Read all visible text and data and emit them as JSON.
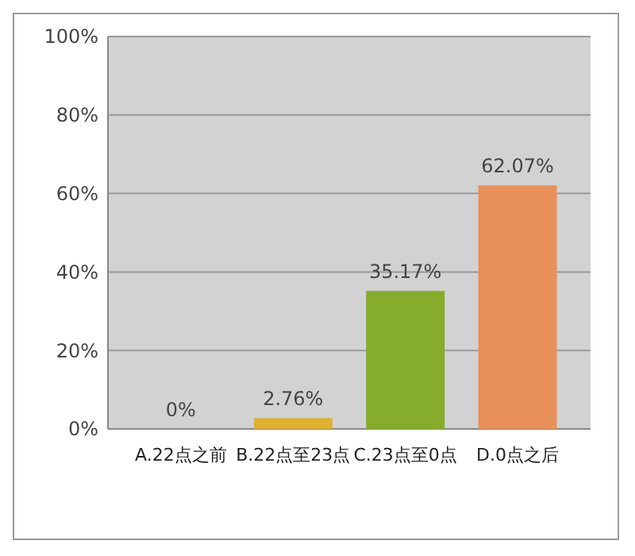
{
  "chart_data": {
    "type": "bar",
    "categories": [
      "A.22点之前",
      "B.22点至23点",
      "C.23点至0点",
      "D.0点之后"
    ],
    "values": [
      0,
      2.76,
      35.17,
      62.07
    ],
    "colors": [
      "#a8cbe8",
      "#e0b030",
      "#86ac2c",
      "#e8905a"
    ],
    "value_labels": [
      "0%",
      "2.76%",
      "35.17%",
      "62.07%"
    ],
    "ylim": [
      0,
      100
    ],
    "yticks": [
      {
        "value": 0,
        "label": "0%"
      },
      {
        "value": 20,
        "label": "20%"
      },
      {
        "value": 40,
        "label": "40%"
      },
      {
        "value": 60,
        "label": "60%"
      },
      {
        "value": 80,
        "label": "80%"
      },
      {
        "value": 100,
        "label": "100%"
      }
    ],
    "grid": "y"
  }
}
